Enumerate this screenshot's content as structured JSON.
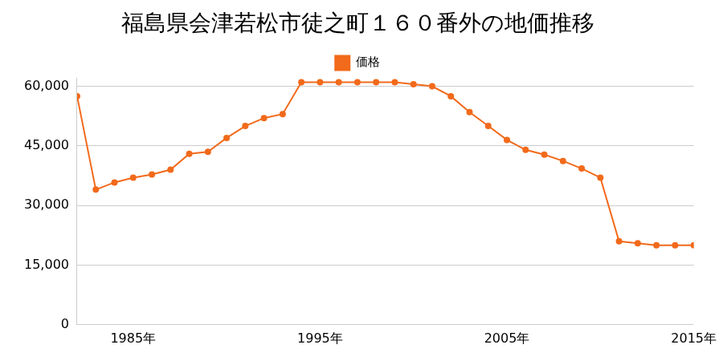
{
  "chart_data": {
    "type": "line",
    "title": "福島県会津若松市徒之町１６０番外の地価推移",
    "categories": [
      null,
      null,
      null,
      "1985年",
      null,
      null,
      null,
      null,
      null,
      null,
      null,
      null,
      null,
      "1995年",
      null,
      null,
      null,
      null,
      null,
      null,
      null,
      null,
      null,
      "2005年",
      null,
      null,
      null,
      null,
      null,
      null,
      null,
      null,
      null,
      "2015年"
    ],
    "series": [
      {
        "name": "価格",
        "color": "#f26a1b",
        "marker": "circle",
        "line_style": "solid",
        "values": [
          57500,
          34000,
          35800,
          37000,
          37800,
          39000,
          43000,
          43500,
          47000,
          50000,
          52000,
          53000,
          61000,
          61000,
          61000,
          61000,
          61000,
          61000,
          60500,
          60000,
          57500,
          53500,
          50000,
          46500,
          44000,
          42800,
          41200,
          39300,
          37000,
          21000,
          20500,
          20000,
          20000,
          20000
        ]
      }
    ],
    "ylim": [
      0,
      62000
    ],
    "yticks": [
      0,
      {
        "value": 15000,
        "label": "15,000"
      },
      {
        "value": 30000,
        "label": "30,000"
      },
      {
        "value": 45000,
        "label": "45,000"
      },
      {
        "value": 60000,
        "label": "60,000"
      }
    ],
    "grid": true,
    "legend": "top"
  }
}
